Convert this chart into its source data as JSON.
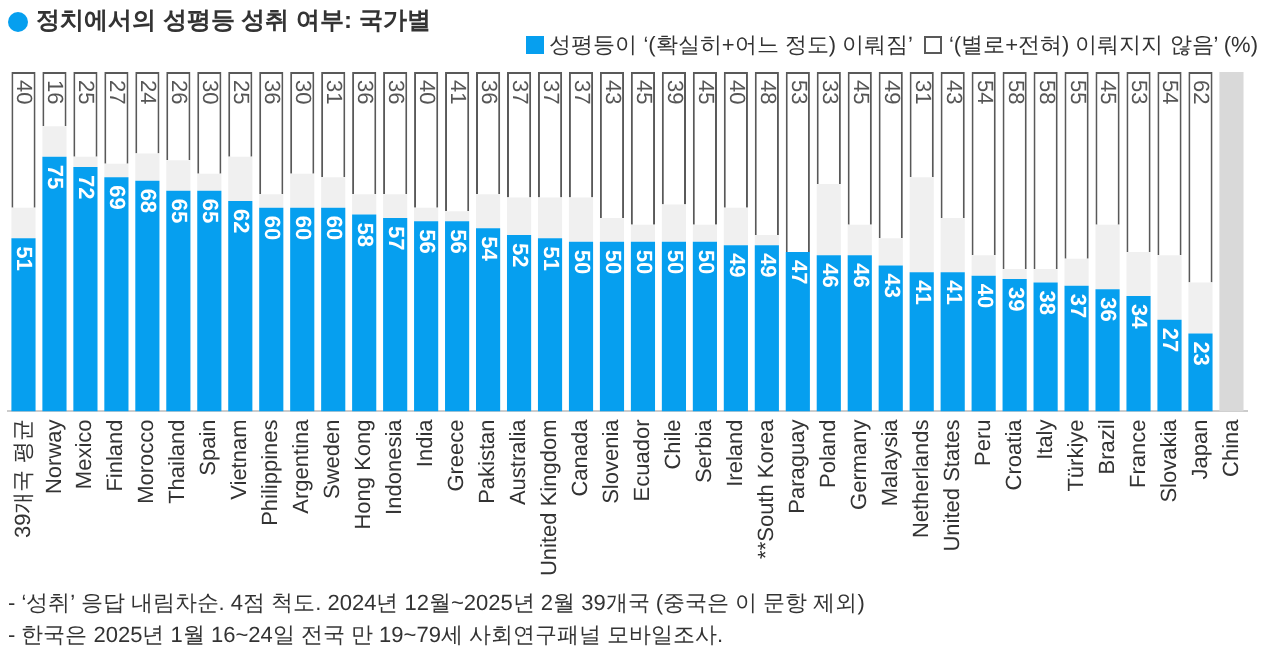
{
  "chart_data": {
    "type": "bar",
    "stacked": true,
    "title": "정치에서의 성평등 성취 여부: 국가별",
    "categories": [
      "39개국 평균",
      "Norway",
      "Mexico",
      "Finland",
      "Morocco",
      "Thailand",
      "Spain",
      "Vietnam",
      "Philippines",
      "Argentina",
      "Sweden",
      "Hong Kong",
      "Indonesia",
      "India",
      "Greece",
      "Pakistan",
      "Australia",
      "United Kingdom",
      "Canada",
      "Slovenia",
      "Ecuador",
      "Chile",
      "Serbia",
      "Ireland",
      "**South Korea",
      "Paraguay",
      "Poland",
      "Germany",
      "Malaysia",
      "Netherlands",
      "United States",
      "Peru",
      "Croatia",
      "Italy",
      "Türkiye",
      "Brazil",
      "France",
      "Slovakia",
      "Japan",
      "China"
    ],
    "series": [
      {
        "name": "성평등이 ‘(확실히+어느 정도) 이뤄짐’",
        "color": "#069fef",
        "values": [
          51,
          75,
          72,
          69,
          68,
          65,
          65,
          62,
          60,
          60,
          60,
          58,
          57,
          56,
          56,
          54,
          52,
          51,
          50,
          50,
          50,
          50,
          50,
          49,
          49,
          47,
          46,
          46,
          43,
          41,
          41,
          40,
          39,
          38,
          37,
          36,
          34,
          27,
          23,
          null
        ],
        "value_labels": [
          "51",
          "75",
          "72",
          "69",
          "68",
          "65",
          "65",
          "62",
          "60",
          "60",
          "60",
          "58",
          "57",
          "56",
          "56",
          "54",
          "52",
          "51",
          "50",
          "50",
          "50",
          "50",
          "50",
          "49",
          "49",
          "47",
          "46",
          "46",
          "43",
          "41",
          "41",
          "40",
          "39",
          "38",
          "37",
          "36",
          "34",
          "27",
          "23",
          null
        ]
      },
      {
        "color": "#f0f0f0",
        "colors": [
          "#f0f0f0",
          "#f0f0f0",
          "#f0f0f0",
          "#f0f0f0",
          "#f0f0f0",
          "#f0f0f0",
          "#f0f0f0",
          "#f0f0f0",
          "#f0f0f0",
          "#f0f0f0",
          "#f0f0f0",
          "#f0f0f0",
          "#f0f0f0",
          "#f0f0f0",
          "#f0f0f0",
          "#f0f0f0",
          "#f0f0f0",
          "#f0f0f0",
          "#f0f0f0",
          "#f0f0f0",
          "#f0f0f0",
          "#f0f0f0",
          "#f0f0f0",
          "#f0f0f0",
          "#f0f0f0",
          "#f0f0f0",
          "#f0f0f0",
          "#f0f0f0",
          "#f0f0f0",
          "#f0f0f0",
          "#f0f0f0",
          "#f0f0f0",
          "#f0f0f0",
          "#f0f0f0",
          "#f0f0f0",
          "#f0f0f0",
          "#f0f0f0",
          "#f0f0f0",
          "#f0f0f0",
          "#d9d9d9"
        ],
        "values": [
          9,
          9,
          3,
          4,
          8,
          9,
          5,
          13,
          4,
          10,
          9,
          6,
          7,
          4,
          3,
          10,
          11,
          12,
          13,
          7,
          5,
          11,
          5,
          11,
          3,
          0,
          21,
          9,
          8,
          28,
          16,
          6,
          3,
          4,
          8,
          19,
          13,
          19,
          15,
          100
        ]
      },
      {
        "name": "‘(별로+전혀) 이뤄지지 않음’ (%)",
        "color": "#ffffff",
        "values": [
          40,
          16,
          25,
          27,
          24,
          26,
          30,
          25,
          36,
          30,
          31,
          36,
          36,
          40,
          41,
          36,
          37,
          37,
          37,
          43,
          45,
          39,
          45,
          40,
          48,
          53,
          33,
          45,
          49,
          31,
          43,
          54,
          58,
          58,
          55,
          45,
          53,
          54,
          62,
          null
        ],
        "value_labels": [
          "40",
          "16",
          "25",
          "27",
          "24",
          "26",
          "30",
          "25",
          "36",
          "30",
          "31",
          "36",
          "36",
          "40",
          "41",
          "36",
          "37",
          "37",
          "37",
          "43",
          "45",
          "39",
          "45",
          "40",
          "48",
          "53",
          "33",
          "45",
          "49",
          "31",
          "43",
          "54",
          "58",
          "58",
          "55",
          "45",
          "53",
          "54",
          "62",
          null
        ]
      }
    ],
    "ylim": [
      0,
      100
    ],
    "tick_labels": "x",
    "grid": false,
    "legend": "top right",
    "annotations": [
      "- ‘성취’ 응답 내림차순. 4점 척도. 2024년 12월~2025년 2월 39개국 (중국은 이 문항 제외)",
      "- 한국은 2025년 1월 16~24일 전국 만 19~79세 사회연구패널 모바일조사."
    ]
  }
}
